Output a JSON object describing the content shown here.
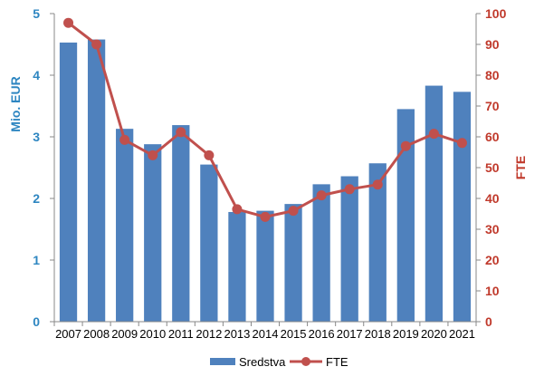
{
  "chart_data": {
    "type": "bar",
    "categories": [
      "2007",
      "2008",
      "2009",
      "2010",
      "2011",
      "2012",
      "2013",
      "2014",
      "2015",
      "2016",
      "2017",
      "2018",
      "2019",
      "2020",
      "2021"
    ],
    "series": [
      {
        "name": "Sredstva",
        "type": "bar",
        "axis": "left",
        "color": "#4f81bd",
        "values": [
          4.53,
          4.58,
          3.13,
          2.88,
          3.19,
          2.55,
          1.78,
          1.8,
          1.91,
          2.23,
          2.36,
          2.57,
          3.45,
          3.83,
          3.73
        ]
      },
      {
        "name": "FTE",
        "type": "line",
        "axis": "right",
        "color": "#c0504d",
        "values": [
          97,
          90,
          59,
          54,
          61.5,
          54,
          36.5,
          34,
          36,
          41,
          43,
          44.5,
          57,
          61,
          58
        ]
      }
    ],
    "ylabel": "Mio. EUR",
    "ylabel_right": "FTE",
    "ylim": [
      0,
      5
    ],
    "ylim_right": [
      0,
      100
    ],
    "yticks": [
      "0",
      "1",
      "2",
      "3",
      "4",
      "5"
    ],
    "yticks_right": [
      "0",
      "10",
      "20",
      "30",
      "40",
      "50",
      "60",
      "70",
      "80",
      "90",
      "100"
    ],
    "left_axis_color": "#2e86c1",
    "right_axis_color": "#c0392b",
    "grid": false,
    "legend_position": "bottom"
  }
}
